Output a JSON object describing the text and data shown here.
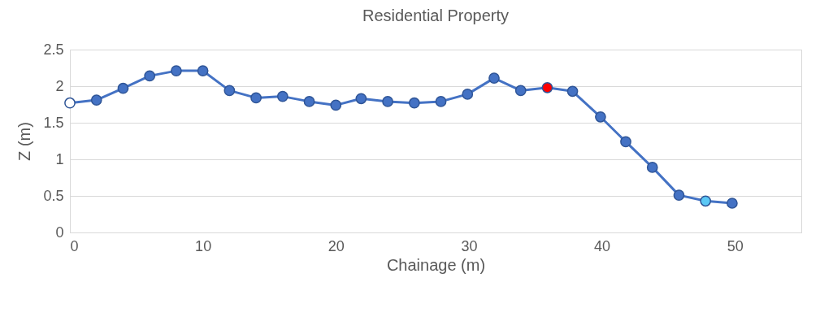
{
  "chart_data": {
    "type": "line",
    "title": "Residential Property",
    "xlabel": "Chainage (m)",
    "ylabel": "Z (m)",
    "x": [
      0,
      2,
      4,
      6,
      8,
      10,
      12,
      14,
      16,
      18,
      20,
      21.9,
      23.9,
      25.9,
      27.9,
      29.9,
      31.9,
      33.9,
      35.9,
      37.8,
      39.9,
      41.8,
      43.8,
      45.8,
      47.8,
      49.8
    ],
    "series": [
      {
        "color": "#4472c4",
        "values": [
          1.77,
          1.81,
          1.97,
          2.14,
          2.21,
          2.21,
          1.94,
          1.84,
          1.86,
          1.79,
          1.74,
          1.83,
          1.79,
          1.77,
          1.79,
          1.89,
          2.11,
          1.94,
          1.98,
          1.93,
          1.58,
          1.24,
          0.89,
          0.51,
          0.43,
          0.4
        ],
        "colors": [
          "#ffffff",
          "#4472c4",
          "#4472c4",
          "#4472c4",
          "#4472c4",
          "#4472c4",
          "#4472c4",
          "#4472c4",
          "#4472c4",
          "#4472c4",
          "#4472c4",
          "#4472c4",
          "#4472c4",
          "#4472c4",
          "#4472c4",
          "#4472c4",
          "#4472c4",
          "#4472c4",
          "#ff0000",
          "#4472c4",
          "#4472c4",
          "#4472c4",
          "#4472c4",
          "#4472c4",
          "#5bc8f5",
          "#4472c4"
        ]
      }
    ],
    "xlim": [
      0,
      55
    ],
    "xticks": [
      0,
      10,
      20,
      30,
      40,
      50
    ],
    "ylim": [
      0,
      2.5
    ],
    "yticks": [
      0,
      0.5,
      1,
      1.5,
      2,
      2.5
    ],
    "grid": "y",
    "marker": "circle",
    "line_style": "solid"
  }
}
